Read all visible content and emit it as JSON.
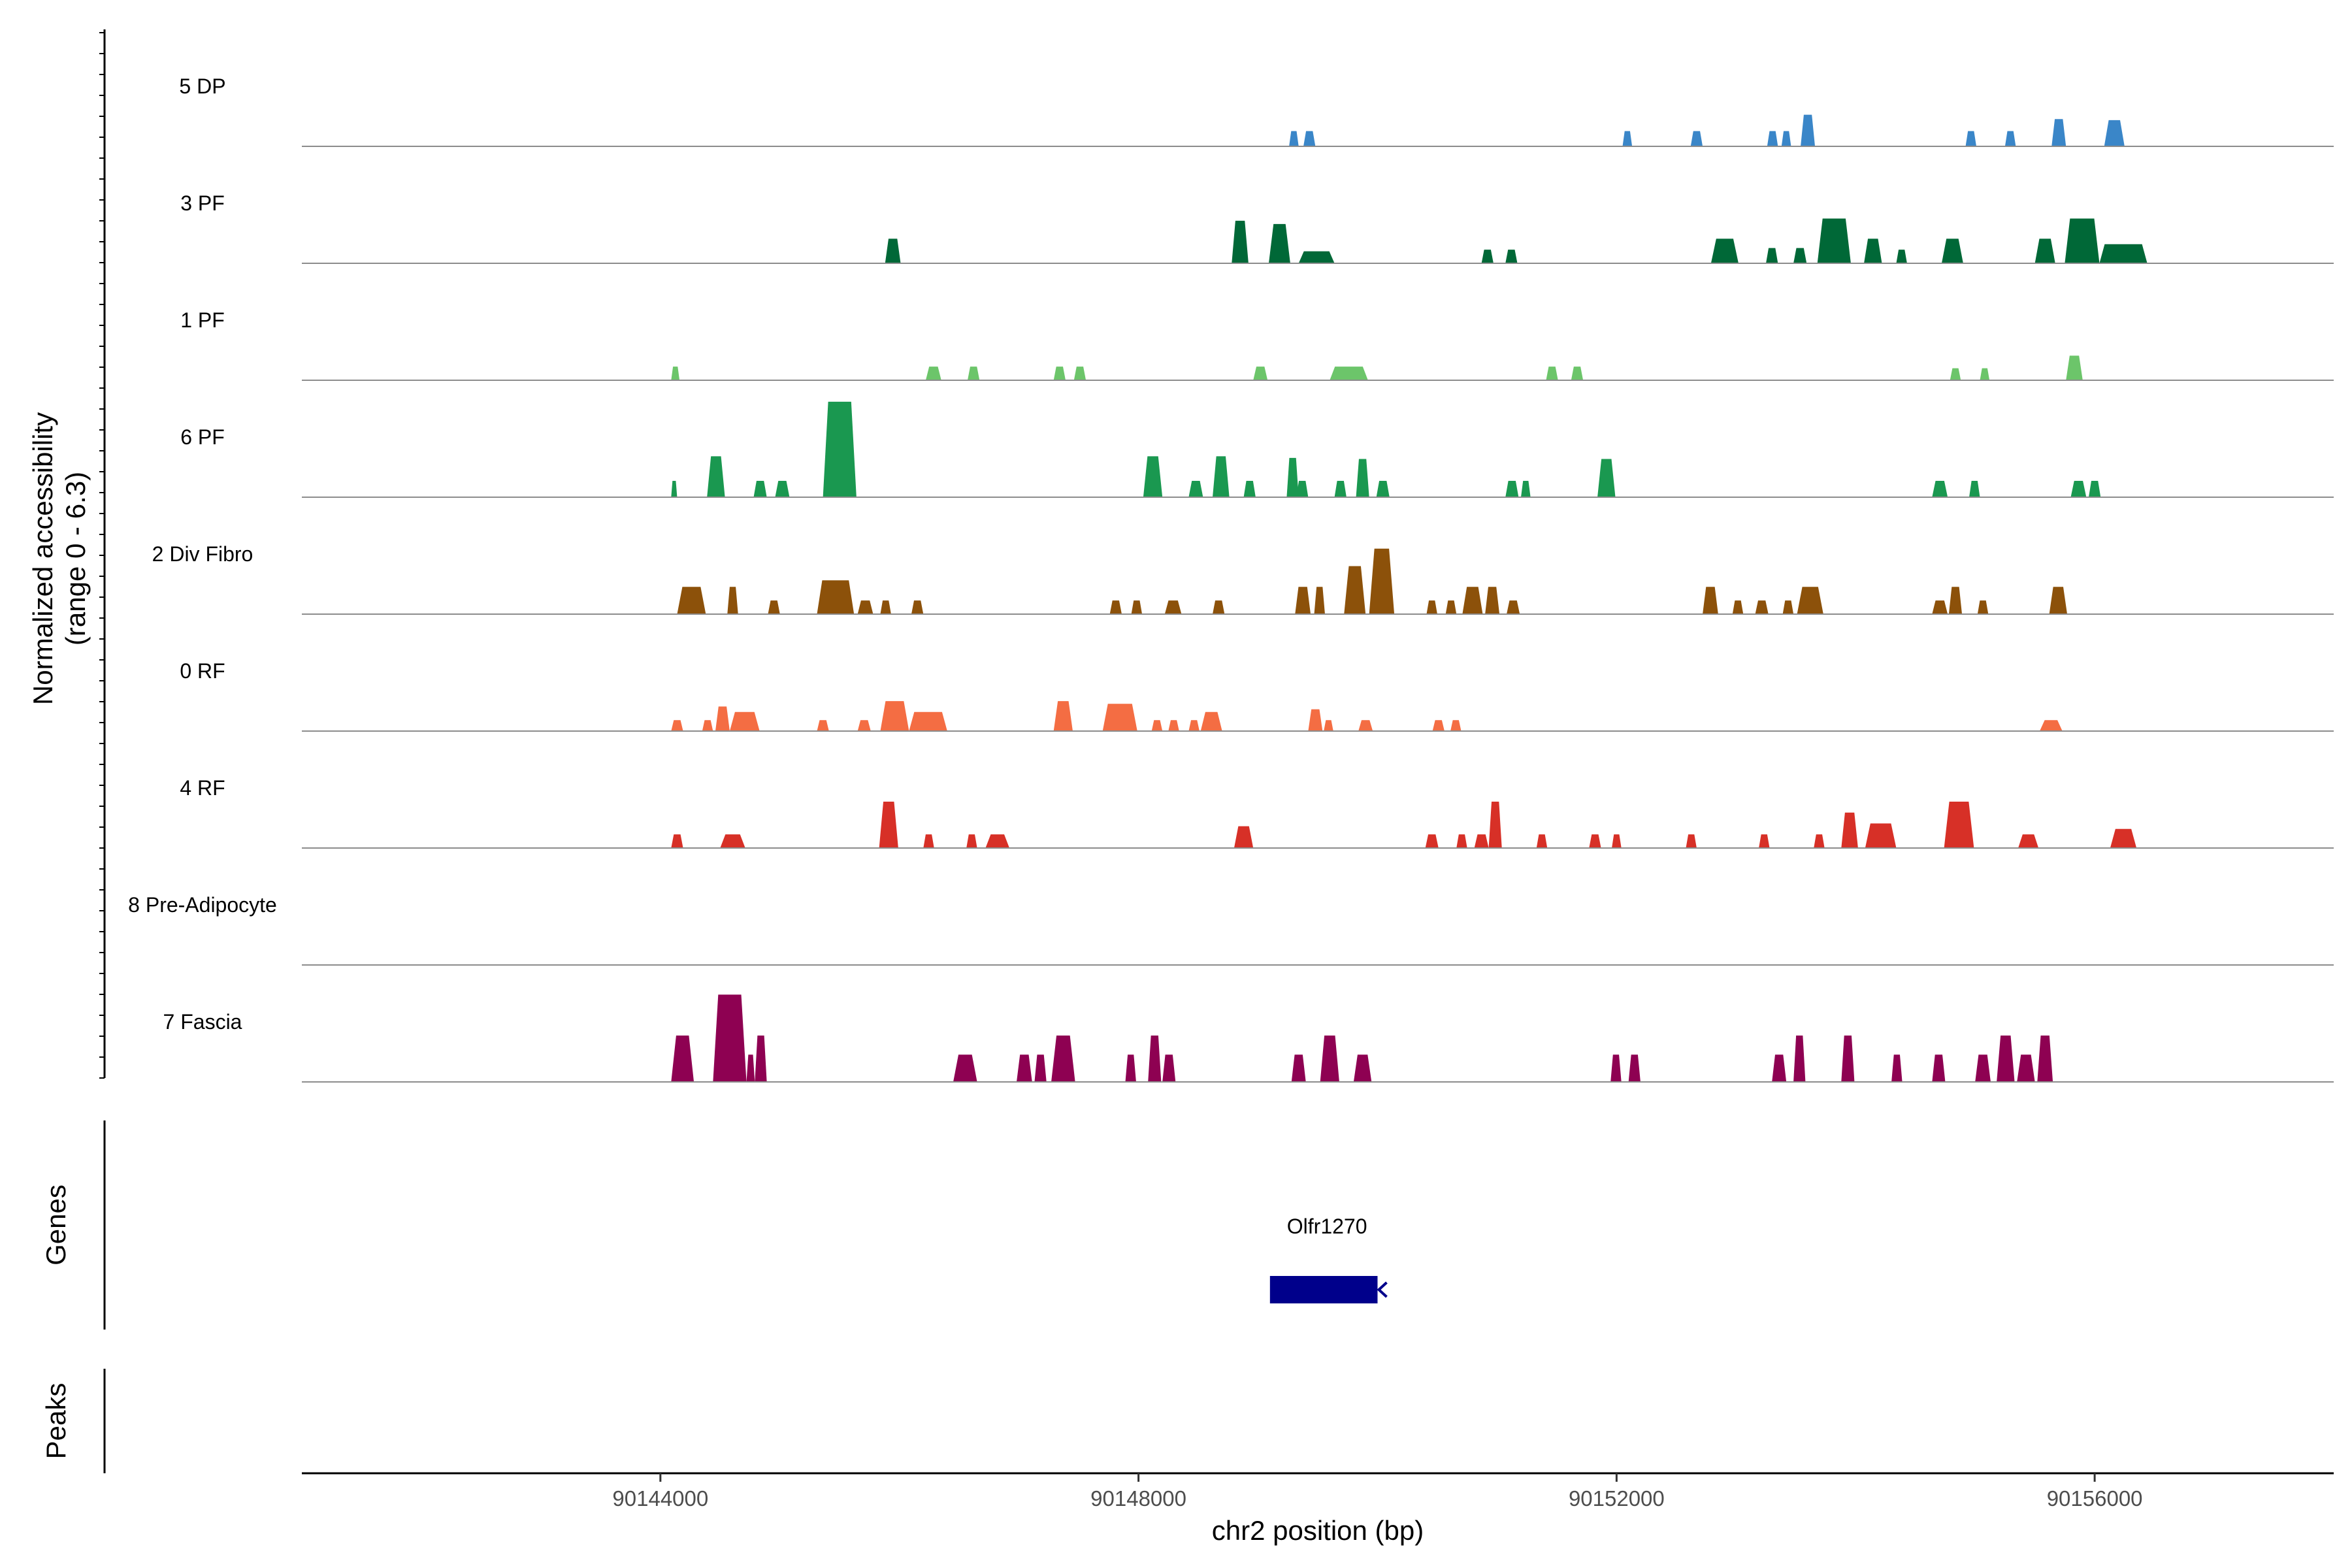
{
  "chart_data": {
    "type": "area",
    "title": "",
    "chromosome": "chr2",
    "xlabel": "chr2 position (bp)",
    "ylabel_line1": "Normalized accessibility",
    "ylabel_line2": "(range 0 - 6.3)",
    "y_range": [
      0,
      6.3
    ],
    "xlim": [
      90141000,
      90158000
    ],
    "x_ticks": [
      {
        "value": 90144000,
        "label": "90144000"
      },
      {
        "value": 90148000,
        "label": "90148000"
      },
      {
        "value": 90152000,
        "label": "90152000"
      },
      {
        "value": 90156000,
        "label": "90156000"
      }
    ],
    "panel_titles": {
      "genes": "Genes",
      "peaks": "Peaks"
    },
    "genes": [
      {
        "name": "Olfr1270",
        "start": 90149100,
        "end": 90150000,
        "strand": "-",
        "color": "#00008b"
      }
    ],
    "peaks": [],
    "tracks": [
      {
        "name": "5 DP",
        "color": "#3a86c8",
        "peaks": [
          [
            90149260,
            90149340,
            0.28
          ],
          [
            90149380,
            90149480,
            0.28
          ],
          [
            90152050,
            90152130,
            0.28
          ],
          [
            90152620,
            90152720,
            0.28
          ],
          [
            90153260,
            90153350,
            0.28
          ],
          [
            90153380,
            90153460,
            0.28
          ],
          [
            90153540,
            90153660,
            0.58
          ],
          [
            90154920,
            90155010,
            0.28
          ],
          [
            90155250,
            90155340,
            0.28
          ],
          [
            90155640,
            90155760,
            0.5
          ],
          [
            90156080,
            90156250,
            0.48
          ]
        ]
      },
      {
        "name": "3 PF",
        "color": "#006837",
        "peaks": [
          [
            90145880,
            90146010,
            0.45
          ],
          [
            90148780,
            90148920,
            0.78
          ],
          [
            90149090,
            90149270,
            0.72
          ],
          [
            90149340,
            90149640,
            0.22
          ],
          [
            90150870,
            90150970,
            0.25
          ],
          [
            90151070,
            90151170,
            0.25
          ],
          [
            90152790,
            90153020,
            0.45
          ],
          [
            90153250,
            90153350,
            0.28
          ],
          [
            90153480,
            90153590,
            0.28
          ],
          [
            90153680,
            90153960,
            0.82
          ],
          [
            90154070,
            90154220,
            0.45
          ],
          [
            90154340,
            90154430,
            0.25
          ],
          [
            90154720,
            90154900,
            0.45
          ],
          [
            90155500,
            90155670,
            0.45
          ],
          [
            90155750,
            90156040,
            0.82
          ],
          [
            90156040,
            90156440,
            0.35
          ]
        ]
      },
      {
        "name": "1 PF",
        "color": "#6cc56a",
        "peaks": [
          [
            90144090,
            90144160,
            0.25
          ],
          [
            90146220,
            90146350,
            0.25
          ],
          [
            90146570,
            90146670,
            0.25
          ],
          [
            90147290,
            90147390,
            0.25
          ],
          [
            90147460,
            90147560,
            0.25
          ],
          [
            90148960,
            90149080,
            0.25
          ],
          [
            90149600,
            90149920,
            0.25
          ],
          [
            90151410,
            90151510,
            0.25
          ],
          [
            90151620,
            90151720,
            0.25
          ],
          [
            90154790,
            90154880,
            0.22
          ],
          [
            90155040,
            90155120,
            0.22
          ],
          [
            90155760,
            90155900,
            0.45
          ]
        ]
      },
      {
        "name": "6 PF",
        "color": "#1a9850",
        "peaks": [
          [
            90144090,
            90144140,
            0.3
          ],
          [
            90144390,
            90144540,
            0.75
          ],
          [
            90144780,
            90144890,
            0.3
          ],
          [
            90144960,
            90145080,
            0.3
          ],
          [
            90145360,
            90145640,
            1.75
          ],
          [
            90148040,
            90148200,
            0.75
          ],
          [
            90148420,
            90148540,
            0.3
          ],
          [
            90148620,
            90148760,
            0.75
          ],
          [
            90148880,
            90148980,
            0.3
          ],
          [
            90149240,
            90149340,
            0.72
          ],
          [
            90149320,
            90149420,
            0.3
          ],
          [
            90149640,
            90149740,
            0.3
          ],
          [
            90149820,
            90149930,
            0.7
          ],
          [
            90149990,
            90150100,
            0.3
          ],
          [
            90151070,
            90151180,
            0.3
          ],
          [
            90151200,
            90151280,
            0.3
          ],
          [
            90151840,
            90151990,
            0.7
          ],
          [
            90154640,
            90154770,
            0.3
          ],
          [
            90154950,
            90155040,
            0.3
          ],
          [
            90155800,
            90155930,
            0.3
          ],
          [
            90155950,
            90156050,
            0.3
          ]
        ]
      },
      {
        "name": "2 Div Fibro",
        "color": "#8c510a",
        "peaks": [
          [
            90144140,
            90144380,
            0.5
          ],
          [
            90144560,
            90144650,
            0.5
          ],
          [
            90144900,
            90145000,
            0.25
          ],
          [
            90145310,
            90145620,
            0.62
          ],
          [
            90145650,
            90145780,
            0.25
          ],
          [
            90145840,
            90145930,
            0.25
          ],
          [
            90146100,
            90146200,
            0.25
          ],
          [
            90147760,
            90147860,
            0.25
          ],
          [
            90147940,
            90148030,
            0.25
          ],
          [
            90148220,
            90148360,
            0.25
          ],
          [
            90148620,
            90148720,
            0.25
          ],
          [
            90149310,
            90149440,
            0.5
          ],
          [
            90149470,
            90149560,
            0.5
          ],
          [
            90149720,
            90149900,
            0.88
          ],
          [
            90149930,
            90150140,
            1.2
          ],
          [
            90150410,
            90150500,
            0.25
          ],
          [
            90150570,
            90150660,
            0.25
          ],
          [
            90150710,
            90150880,
            0.5
          ],
          [
            90150900,
            90151020,
            0.5
          ],
          [
            90151080,
            90151190,
            0.25
          ],
          [
            90152720,
            90152850,
            0.5
          ],
          [
            90152970,
            90153060,
            0.25
          ],
          [
            90153160,
            90153270,
            0.25
          ],
          [
            90153390,
            90153480,
            0.25
          ],
          [
            90153510,
            90153730,
            0.5
          ],
          [
            90154640,
            90154770,
            0.25
          ],
          [
            90154780,
            90154890,
            0.5
          ],
          [
            90155020,
            90155110,
            0.25
          ],
          [
            90155620,
            90155770,
            0.5
          ]
        ]
      },
      {
        "name": "0 RF",
        "color": "#f46d43",
        "peaks": [
          [
            90144090,
            90144190,
            0.2
          ],
          [
            90144350,
            90144440,
            0.2
          ],
          [
            90144460,
            90144580,
            0.45
          ],
          [
            90144580,
            90144830,
            0.35
          ],
          [
            90145310,
            90145410,
            0.2
          ],
          [
            90145650,
            90145760,
            0.2
          ],
          [
            90145840,
            90146080,
            0.55
          ],
          [
            90146080,
            90146400,
            0.35
          ],
          [
            90147290,
            90147450,
            0.55
          ],
          [
            90147700,
            90147990,
            0.5
          ],
          [
            90148110,
            90148200,
            0.2
          ],
          [
            90148250,
            90148340,
            0.2
          ],
          [
            90148420,
            90148510,
            0.2
          ],
          [
            90148520,
            90148700,
            0.35
          ],
          [
            90149420,
            90149540,
            0.4
          ],
          [
            90149550,
            90149630,
            0.2
          ],
          [
            90149840,
            90149960,
            0.2
          ],
          [
            90150460,
            90150560,
            0.2
          ],
          [
            90150610,
            90150700,
            0.2
          ],
          [
            90155540,
            90155730,
            0.2
          ]
        ]
      },
      {
        "name": "4 RF",
        "color": "#d73027",
        "peaks": [
          [
            90144090,
            90144190,
            0.25
          ],
          [
            90144500,
            90144710,
            0.25
          ],
          [
            90145830,
            90145990,
            0.85
          ],
          [
            90146200,
            90146290,
            0.25
          ],
          [
            90146560,
            90146650,
            0.25
          ],
          [
            90146720,
            90146920,
            0.25
          ],
          [
            90148800,
            90148960,
            0.4
          ],
          [
            90150400,
            90150510,
            0.25
          ],
          [
            90150660,
            90150750,
            0.25
          ],
          [
            90150810,
            90150930,
            0.25
          ],
          [
            90150930,
            90151040,
            0.85
          ],
          [
            90151330,
            90151420,
            0.25
          ],
          [
            90151770,
            90151870,
            0.25
          ],
          [
            90151960,
            90152040,
            0.25
          ],
          [
            90152580,
            90152670,
            0.25
          ],
          [
            90153190,
            90153280,
            0.25
          ],
          [
            90153650,
            90153740,
            0.25
          ],
          [
            90153880,
            90154020,
            0.65
          ],
          [
            90154080,
            90154340,
            0.45
          ],
          [
            90154740,
            90154990,
            0.85
          ],
          [
            90155360,
            90155530,
            0.25
          ],
          [
            90156130,
            90156350,
            0.35
          ]
        ]
      },
      {
        "name": "8 Pre-Adipocyte",
        "color": "#762a83",
        "peaks": []
      },
      {
        "name": "7 Fascia",
        "color": "#8e0152",
        "peaks": [
          [
            90144090,
            90144280,
            0.85
          ],
          [
            90144440,
            90144720,
            1.6
          ],
          [
            90144720,
            90144790,
            0.5
          ],
          [
            90144790,
            90144890,
            0.85
          ],
          [
            90146450,
            90146650,
            0.5
          ],
          [
            90146980,
            90147110,
            0.5
          ],
          [
            90147130,
            90147230,
            0.5
          ],
          [
            90147270,
            90147470,
            0.85
          ],
          [
            90147890,
            90147980,
            0.5
          ],
          [
            90148080,
            90148190,
            0.85
          ],
          [
            90148200,
            90148310,
            0.5
          ],
          [
            90149280,
            90149400,
            0.5
          ],
          [
            90149520,
            90149680,
            0.85
          ],
          [
            90149800,
            90149950,
            0.5
          ],
          [
            90151950,
            90152040,
            0.5
          ],
          [
            90152100,
            90152200,
            0.5
          ],
          [
            90153300,
            90153420,
            0.5
          ],
          [
            90153480,
            90153580,
            0.85
          ],
          [
            90153880,
            90153990,
            0.85
          ],
          [
            90154300,
            90154390,
            0.5
          ],
          [
            90154640,
            90154750,
            0.5
          ],
          [
            90155000,
            90155130,
            0.5
          ],
          [
            90155180,
            90155330,
            0.85
          ],
          [
            90155350,
            90155500,
            0.5
          ],
          [
            90155520,
            90155650,
            0.85
          ]
        ]
      }
    ]
  }
}
